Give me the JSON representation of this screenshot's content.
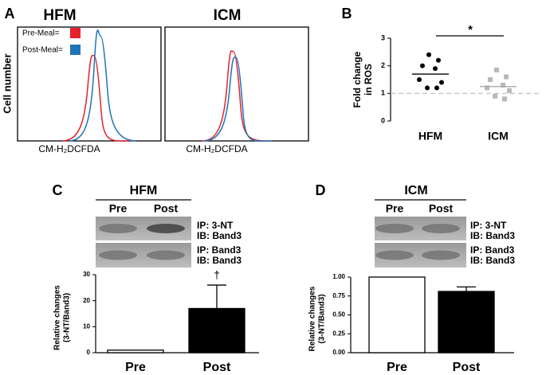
{
  "chart_data": [
    {
      "type": "flow",
      "panel_label": "A",
      "title": "HFM",
      "xlabel": "CM-H₂DCFDA",
      "ylabel": "Cell number",
      "series": [
        {
          "name": "Pre-Meal=",
          "color": "#e8202a"
        },
        {
          "name": "Post-Meal=",
          "color": "#1f73b7"
        }
      ]
    },
    {
      "type": "flow",
      "title": "ICM",
      "xlabel": "CM-H₂DCFDA",
      "series": [
        {
          "color": "#e8202a"
        },
        {
          "color": "#1f73b7"
        }
      ]
    },
    {
      "type": "dot",
      "panel_label": "B",
      "ylabel": [
        "Fold change",
        "in ROS"
      ],
      "categories": [
        "HFM",
        "ICM"
      ],
      "colors": [
        "#000000",
        "#b8b8b8"
      ],
      "values": [
        [
          2.4,
          2.2,
          2.0,
          1.9,
          1.5,
          1.4,
          1.2,
          1.2
        ],
        [
          1.85,
          1.6,
          1.5,
          1.3,
          1.2,
          1.1,
          0.9,
          0.8
        ]
      ],
      "means": [
        1.7,
        1.25
      ],
      "reference_line": 1,
      "significance": "*",
      "ylim": [
        0,
        3
      ],
      "yticks": [
        0,
        1,
        2,
        3
      ]
    },
    {
      "type": "bar",
      "panel_label": "C",
      "title": "HFM",
      "lanes": [
        "Pre",
        "Post"
      ],
      "blot_labels": [
        "IP: 3-NT",
        "IB: Band3",
        "IP: Band3",
        "IB: Band3"
      ],
      "ylabel": [
        "Relative changes",
        "(3-NT/Band3)"
      ],
      "categories": [
        "Pre",
        "Post"
      ],
      "values": [
        1,
        17
      ],
      "errors": [
        null,
        9
      ],
      "annotations": [
        null,
        "†"
      ],
      "colors": [
        "#ffffff",
        "#000000"
      ],
      "ylim": [
        0,
        30
      ],
      "yticks": [
        0,
        10,
        20,
        30
      ]
    },
    {
      "type": "bar",
      "panel_label": "D",
      "title": "ICM",
      "lanes": [
        "Pre",
        "Post"
      ],
      "blot_labels": [
        "IP: 3-NT",
        "IB: Band3",
        "IP: Band3",
        "IB: Band3"
      ],
      "ylabel": [
        "Relative changes",
        "(3-NT/Band3)"
      ],
      "categories": [
        "Pre",
        "Post"
      ],
      "values": [
        1,
        0.81
      ],
      "errors": [
        null,
        0.06
      ],
      "annotations": [
        null,
        null
      ],
      "colors": [
        "#ffffff",
        "#000000"
      ],
      "ylim": [
        0,
        1
      ],
      "yticks": [
        {
          "value": 0,
          "label": "0.00"
        },
        {
          "value": 0.25,
          "label": "0.25"
        },
        {
          "value": 0.5,
          "label": "0.50"
        },
        {
          "value": 0.75,
          "label": "0.75"
        },
        {
          "value": 1,
          "label": "1.00"
        }
      ]
    }
  ]
}
